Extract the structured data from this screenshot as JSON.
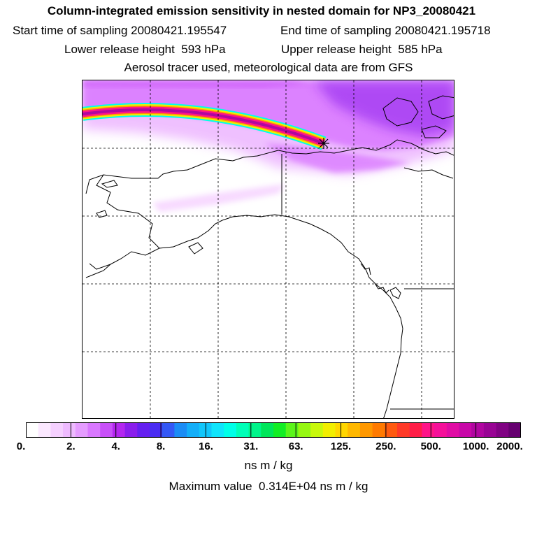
{
  "header": {
    "title": "Column-integrated emission sensitivity in nested domain for NP3_20080421",
    "start": "Start time of sampling 20080421.195547",
    "end": "End time of sampling 20080421.195718",
    "lower": "Lower release height  593 hPa",
    "upper": "Upper release height  585 hPa",
    "aerosol": "Aerosol tracer used, meteorological data are from GFS"
  },
  "map": {
    "region": "Alaska and northwestern North America",
    "features": [
      "coastlines",
      "borders",
      "dashed-graticule",
      "release-point-marker"
    ],
    "marker_icon": "star-burst-icon"
  },
  "colorbar": {
    "tick_labels": [
      "0.",
      "2.",
      "4.",
      "8.",
      "16.",
      "31.",
      "63.",
      "125.",
      "250.",
      "500.",
      "1000.",
      "2000."
    ],
    "colors": [
      "#ffffff",
      "#fbe8ff",
      "#f5d0ff",
      "#eebaff",
      "#e59cff",
      "#d978ff",
      "#c850f8",
      "#b327ef",
      "#8a1eec",
      "#6520f0",
      "#4a2cf2",
      "#3458f5",
      "#1b8cf5",
      "#14aef8",
      "#12c6fa",
      "#10e4fb",
      "#00ffe8",
      "#00ffb8",
      "#00f48a",
      "#00e65a",
      "#12ee24",
      "#5af51a",
      "#96f712",
      "#c8f80c",
      "#f2ee00",
      "#ffd600",
      "#ffb800",
      "#ff9800",
      "#ff7a00",
      "#ff5a10",
      "#ff3a28",
      "#ff1e48",
      "#ff1488",
      "#f5109a",
      "#e00ca4",
      "#c808a8",
      "#b006a0",
      "#980494",
      "#800283",
      "#660070"
    ],
    "units": "ns m / kg"
  },
  "max_value": "Maximum value  0.314E+04 ns m / kg"
}
